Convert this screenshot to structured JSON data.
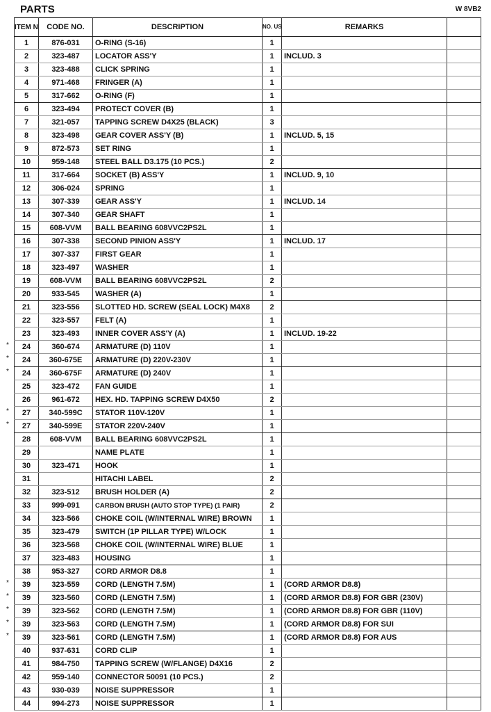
{
  "page": {
    "title": "PARTS",
    "model": "W 8VB2"
  },
  "headers": {
    "item_no": "ITEM NO.",
    "code_no": "CODE NO.",
    "description": "DESCRIPTION",
    "no_used": "NO. USED",
    "remarks": "REMARKS"
  },
  "rows": [
    {
      "star": "",
      "item": "1",
      "code": "876-031",
      "desc": "O-RING (S-16)",
      "used": "1",
      "remarks": ""
    },
    {
      "star": "",
      "item": "2",
      "code": "323-487",
      "desc": "LOCATOR ASS'Y",
      "used": "1",
      "remarks": "INCLUD. 3"
    },
    {
      "star": "",
      "item": "3",
      "code": "323-488",
      "desc": "CLICK SPRING",
      "used": "1",
      "remarks": ""
    },
    {
      "star": "",
      "item": "4",
      "code": "971-468",
      "desc": "FRINGER (A)",
      "used": "1",
      "remarks": ""
    },
    {
      "star": "",
      "item": "5",
      "code": "317-662",
      "desc": "O-RING (F)",
      "used": "1",
      "remarks": ""
    },
    {
      "star": "",
      "item": "6",
      "code": "323-494",
      "desc": "PROTECT COVER (B)",
      "used": "1",
      "remarks": ""
    },
    {
      "star": "",
      "item": "7",
      "code": "321-057",
      "desc": "TAPPING SCREW D4X25 (BLACK)",
      "used": "3",
      "remarks": ""
    },
    {
      "star": "",
      "item": "8",
      "code": "323-498",
      "desc": "GEAR COVER ASS'Y (B)",
      "used": "1",
      "remarks": "INCLUD. 5, 15"
    },
    {
      "star": "",
      "item": "9",
      "code": "872-573",
      "desc": "SET RING",
      "used": "1",
      "remarks": ""
    },
    {
      "star": "",
      "item": "10",
      "code": "959-148",
      "desc": "STEEL BALL D3.175 (10 PCS.)",
      "used": "2",
      "remarks": ""
    },
    {
      "star": "",
      "item": "11",
      "code": "317-664",
      "desc": "SOCKET (B) ASS'Y",
      "used": "1",
      "remarks": "INCLUD. 9, 10"
    },
    {
      "star": "",
      "item": "12",
      "code": "306-024",
      "desc": "SPRING",
      "used": "1",
      "remarks": ""
    },
    {
      "star": "",
      "item": "13",
      "code": "307-339",
      "desc": "GEAR ASS'Y",
      "used": "1",
      "remarks": "INCLUD. 14"
    },
    {
      "star": "",
      "item": "14",
      "code": "307-340",
      "desc": "GEAR SHAFT",
      "used": "1",
      "remarks": ""
    },
    {
      "star": "",
      "item": "15",
      "code": "608-VVM",
      "desc": "BALL BEARING 608VVC2PS2L",
      "used": "1",
      "remarks": ""
    },
    {
      "star": "",
      "item": "16",
      "code": "307-338",
      "desc": "SECOND PINION ASS'Y",
      "used": "1",
      "remarks": "INCLUD. 17"
    },
    {
      "star": "",
      "item": "17",
      "code": "307-337",
      "desc": "FIRST GEAR",
      "used": "1",
      "remarks": ""
    },
    {
      "star": "",
      "item": "18",
      "code": "323-497",
      "desc": "WASHER",
      "used": "1",
      "remarks": ""
    },
    {
      "star": "",
      "item": "19",
      "code": "608-VVM",
      "desc": "BALL BEARING 608VVC2PS2L",
      "used": "2",
      "remarks": ""
    },
    {
      "star": "",
      "item": "20",
      "code": "933-545",
      "desc": "WASHER (A)",
      "used": "1",
      "remarks": ""
    },
    {
      "star": "",
      "item": "21",
      "code": "323-556",
      "desc": "SLOTTED HD. SCREW (SEAL LOCK) M4X8",
      "used": "2",
      "remarks": ""
    },
    {
      "star": "",
      "item": "22",
      "code": "323-557",
      "desc": "FELT (A)",
      "used": "1",
      "remarks": ""
    },
    {
      "star": "",
      "item": "23",
      "code": "323-493",
      "desc": "INNER COVER ASS'Y (A)",
      "used": "1",
      "remarks": "INCLUD. 19-22"
    },
    {
      "star": "*",
      "item": "24",
      "code": "360-674",
      "desc": "ARMATURE (D) 110V",
      "used": "1",
      "remarks": ""
    },
    {
      "star": "*",
      "item": "24",
      "code": "360-675E",
      "desc": "ARMATURE (D) 220V-230V",
      "used": "1",
      "remarks": ""
    },
    {
      "star": "*",
      "item": "24",
      "code": "360-675F",
      "desc": "ARMATURE (D) 240V",
      "used": "1",
      "remarks": ""
    },
    {
      "star": "",
      "item": "25",
      "code": "323-472",
      "desc": "FAN GUIDE",
      "used": "1",
      "remarks": ""
    },
    {
      "star": "",
      "item": "26",
      "code": "961-672",
      "desc": "HEX. HD. TAPPING SCREW D4X50",
      "used": "2",
      "remarks": ""
    },
    {
      "star": "*",
      "item": "27",
      "code": "340-599C",
      "desc": "STATOR 110V-120V",
      "used": "1",
      "remarks": ""
    },
    {
      "star": "*",
      "item": "27",
      "code": "340-599E",
      "desc": "STATOR 220V-240V",
      "used": "1",
      "remarks": ""
    },
    {
      "star": "",
      "item": "28",
      "code": "608-VVM",
      "desc": "BALL BEARING 608VVC2PS2L",
      "used": "1",
      "remarks": ""
    },
    {
      "star": "",
      "item": "29",
      "code": "",
      "desc": "NAME PLATE",
      "used": "1",
      "remarks": ""
    },
    {
      "star": "",
      "item": "30",
      "code": "323-471",
      "desc": "HOOK",
      "used": "1",
      "remarks": ""
    },
    {
      "star": "",
      "item": "31",
      "code": "",
      "desc": "HITACHI LABEL",
      "used": "2",
      "remarks": ""
    },
    {
      "star": "",
      "item": "32",
      "code": "323-512",
      "desc": "BRUSH HOLDER (A)",
      "used": "2",
      "remarks": ""
    },
    {
      "star": "",
      "item": "33",
      "code": "999-091",
      "desc": "CARBON BRUSH (AUTO STOP TYPE) (1 PAIR)",
      "used": "2",
      "remarks": "",
      "small": true
    },
    {
      "star": "",
      "item": "34",
      "code": "323-566",
      "desc": "CHOKE COIL (W/INTERNAL WIRE) BROWN",
      "used": "1",
      "remarks": ""
    },
    {
      "star": "",
      "item": "35",
      "code": "323-479",
      "desc": "SWITCH (1P PILLAR TYPE) W/LOCK",
      "used": "1",
      "remarks": ""
    },
    {
      "star": "",
      "item": "36",
      "code": "323-568",
      "desc": "CHOKE COIL (W/INTERNAL WIRE) BLUE",
      "used": "1",
      "remarks": ""
    },
    {
      "star": "",
      "item": "37",
      "code": "323-483",
      "desc": "HOUSING",
      "used": "1",
      "remarks": ""
    },
    {
      "star": "",
      "item": "38",
      "code": "953-327",
      "desc": "CORD ARMOR D8.8",
      "used": "1",
      "remarks": ""
    },
    {
      "star": "*",
      "item": "39",
      "code": "323-559",
      "desc": "CORD (LENGTH 7.5M)",
      "used": "1",
      "remarks": "(CORD ARMOR D8.8)"
    },
    {
      "star": "*",
      "item": "39",
      "code": "323-560",
      "desc": "CORD (LENGTH 7.5M)",
      "used": "1",
      "remarks": "(CORD ARMOR D8.8) FOR GBR (230V)"
    },
    {
      "star": "*",
      "item": "39",
      "code": "323-562",
      "desc": "CORD (LENGTH 7.5M)",
      "used": "1",
      "remarks": "(CORD ARMOR D8.8) FOR GBR (110V)"
    },
    {
      "star": "*",
      "item": "39",
      "code": "323-563",
      "desc": "CORD (LENGTH 7.5M)",
      "used": "1",
      "remarks": "(CORD ARMOR D8.8) FOR SUI"
    },
    {
      "star": "*",
      "item": "39",
      "code": "323-561",
      "desc": "CORD (LENGTH 7.5M)",
      "used": "1",
      "remarks": "(CORD ARMOR D8.8) FOR AUS"
    },
    {
      "star": "",
      "item": "40",
      "code": "937-631",
      "desc": "CORD CLIP",
      "used": "1",
      "remarks": ""
    },
    {
      "star": "",
      "item": "41",
      "code": "984-750",
      "desc": "TAPPING SCREW (W/FLANGE) D4X16",
      "used": "2",
      "remarks": ""
    },
    {
      "star": "",
      "item": "42",
      "code": "959-140",
      "desc": "CONNECTOR 50091 (10 PCS.)",
      "used": "2",
      "remarks": ""
    },
    {
      "star": "",
      "item": "43",
      "code": "930-039",
      "desc": "NOISE SUPPRESSOR",
      "used": "1",
      "remarks": ""
    },
    {
      "star": "",
      "item": "44",
      "code": "994-273",
      "desc": "NOISE SUPPRESSOR",
      "used": "1",
      "remarks": ""
    }
  ]
}
